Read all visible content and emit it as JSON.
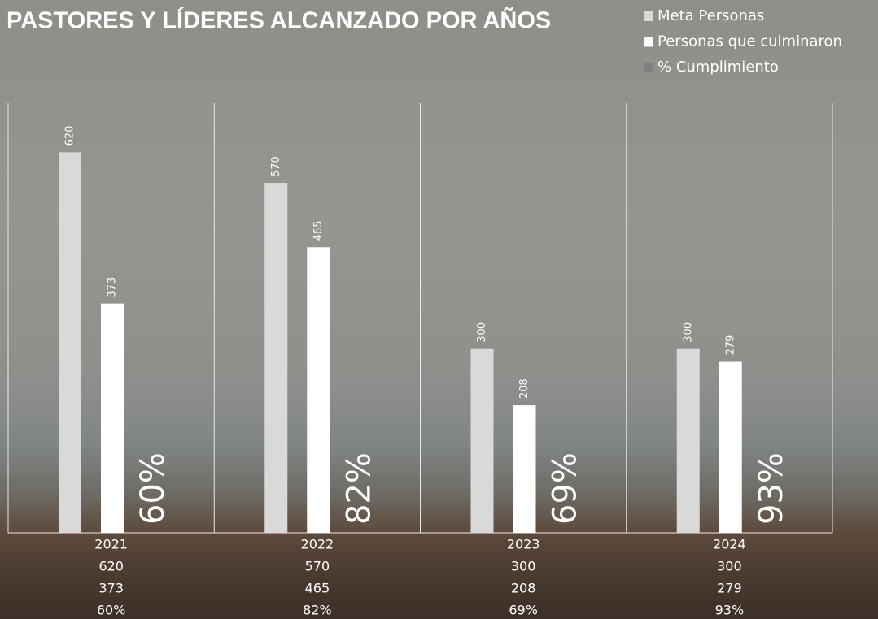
{
  "chart_data": {
    "type": "bar",
    "title": "PASTORES Y LÍDERES ALCANZADO POR AÑOS",
    "categories": [
      "2021",
      "2022",
      "2023",
      "2024"
    ],
    "series": [
      {
        "name": "Meta Personas",
        "color": "#d9d9d9",
        "values": [
          620,
          570,
          300,
          300
        ]
      },
      {
        "name": "Personas que culminaron",
        "color": "#ffffff",
        "values": [
          373,
          465,
          208,
          279
        ]
      },
      {
        "name": "% Cumplimiento",
        "color": "#808080",
        "values": [
          60,
          82,
          69,
          93
        ],
        "value_labels": [
          "60%",
          "82%",
          "69%",
          "93%"
        ]
      }
    ],
    "ylim": [
      0,
      700
    ]
  }
}
